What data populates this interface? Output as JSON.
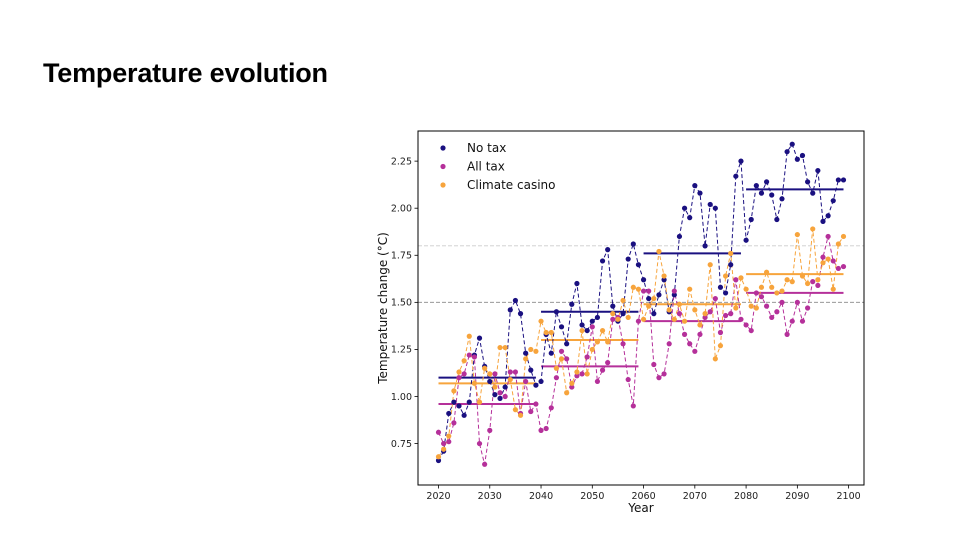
{
  "slide": {
    "title": "Temperature evolution"
  },
  "chart_data": {
    "type": "line",
    "title": "",
    "xlabel": "Year",
    "ylabel": "Temperature change (°C)",
    "xlim": [
      2016,
      2103
    ],
    "ylim": [
      0.53,
      2.41
    ],
    "xticks": [
      2020,
      2030,
      2040,
      2050,
      2060,
      2070,
      2080,
      2090,
      2100
    ],
    "yticks": [
      "0.75",
      "1.00",
      "1.25",
      "1.50",
      "1.75",
      "2.00",
      "2.25"
    ],
    "grid": false,
    "legend_position": "top-left",
    "reference_lines": [
      {
        "y": 1.5,
        "style": "dashed",
        "color": "#888888"
      },
      {
        "y": 1.8,
        "style": "dashed",
        "color": "#cccccc"
      }
    ],
    "x": [
      2020,
      2021,
      2022,
      2023,
      2024,
      2025,
      2026,
      2027,
      2028,
      2029,
      2030,
      2031,
      2032,
      2033,
      2034,
      2035,
      2036,
      2037,
      2038,
      2039,
      2040,
      2041,
      2042,
      2043,
      2044,
      2045,
      2046,
      2047,
      2048,
      2049,
      2050,
      2051,
      2052,
      2053,
      2054,
      2055,
      2056,
      2057,
      2058,
      2059,
      2060,
      2061,
      2062,
      2063,
      2064,
      2065,
      2066,
      2067,
      2068,
      2069,
      2070,
      2071,
      2072,
      2073,
      2074,
      2075,
      2076,
      2077,
      2078,
      2079,
      2080,
      2081,
      2082,
      2083,
      2084,
      2085,
      2086,
      2087,
      2088,
      2089,
      2090,
      2091,
      2092,
      2093,
      2094,
      2095,
      2096,
      2097,
      2098,
      2099
    ],
    "series": [
      {
        "name": "No tax",
        "color": "#1a1080",
        "values": [
          0.66,
          0.71,
          0.91,
          0.97,
          0.95,
          0.9,
          0.97,
          1.22,
          1.31,
          1.16,
          1.08,
          1.01,
          0.99,
          1.05,
          1.46,
          1.51,
          1.44,
          1.23,
          1.14,
          1.06,
          1.08,
          1.33,
          1.23,
          1.45,
          1.37,
          1.28,
          1.49,
          1.6,
          1.38,
          1.35,
          1.4,
          1.42,
          1.72,
          1.78,
          1.48,
          1.4,
          1.44,
          1.73,
          1.81,
          1.7,
          1.62,
          1.52,
          1.44,
          1.54,
          1.62,
          1.45,
          1.54,
          1.85,
          2.0,
          1.95,
          2.12,
          2.08,
          1.8,
          2.02,
          2.0,
          1.58,
          1.55,
          1.7,
          2.17,
          2.25,
          1.83,
          1.94,
          2.12,
          2.08,
          2.14,
          2.07,
          1.94,
          2.05,
          2.3,
          2.34,
          2.26,
          2.28,
          2.14,
          2.08,
          2.2,
          1.93,
          1.96,
          2.04,
          2.15,
          2.15
        ],
        "period_means": [
          {
            "start": 2020,
            "end": 2039,
            "value": 1.1
          },
          {
            "start": 2040,
            "end": 2059,
            "value": 1.45
          },
          {
            "start": 2060,
            "end": 2079,
            "value": 1.76
          },
          {
            "start": 2080,
            "end": 2099,
            "value": 2.1
          }
        ]
      },
      {
        "name": "All tax",
        "color": "#b5309a",
        "values": [
          0.81,
          0.75,
          0.76,
          0.86,
          1.1,
          1.12,
          1.22,
          1.21,
          0.75,
          0.64,
          0.82,
          1.12,
          1.02,
          1.0,
          1.13,
          1.13,
          0.91,
          1.08,
          0.92,
          0.96,
          0.82,
          0.83,
          0.94,
          1.1,
          1.24,
          1.2,
          1.05,
          1.11,
          1.12,
          1.21,
          1.37,
          1.08,
          1.14,
          1.18,
          1.41,
          1.42,
          1.28,
          1.09,
          0.95,
          1.4,
          1.56,
          1.56,
          1.17,
          1.1,
          1.12,
          1.28,
          1.56,
          1.44,
          1.33,
          1.28,
          1.24,
          1.33,
          1.42,
          1.45,
          1.52,
          1.34,
          1.43,
          1.44,
          1.62,
          1.41,
          1.38,
          1.35,
          1.55,
          1.53,
          1.48,
          1.42,
          1.45,
          1.5,
          1.33,
          1.4,
          1.5,
          1.4,
          1.47,
          1.61,
          1.59,
          1.74,
          1.85,
          1.72,
          1.68,
          1.69
        ],
        "period_means": [
          {
            "start": 2020,
            "end": 2039,
            "value": 0.96
          },
          {
            "start": 2040,
            "end": 2059,
            "value": 1.16
          },
          {
            "start": 2060,
            "end": 2079,
            "value": 1.4
          },
          {
            "start": 2080,
            "end": 2099,
            "value": 1.55
          }
        ]
      },
      {
        "name": "Climate casino",
        "color": "#f7a43c",
        "values": [
          0.68,
          0.72,
          0.79,
          1.03,
          1.13,
          1.19,
          1.32,
          1.07,
          0.97,
          1.15,
          1.12,
          1.05,
          1.26,
          1.26,
          1.09,
          0.93,
          0.9,
          1.2,
          1.25,
          1.24,
          1.4,
          1.34,
          1.34,
          1.15,
          1.2,
          1.02,
          1.07,
          1.13,
          1.35,
          1.12,
          1.25,
          1.29,
          1.35,
          1.29,
          1.44,
          1.41,
          1.51,
          1.42,
          1.58,
          1.57,
          1.41,
          1.48,
          1.52,
          1.77,
          1.64,
          1.46,
          1.41,
          1.49,
          1.4,
          1.57,
          1.46,
          1.38,
          1.44,
          1.7,
          1.2,
          1.27,
          1.64,
          1.76,
          1.47,
          1.63,
          1.57,
          1.48,
          1.47,
          1.58,
          1.66,
          1.58,
          1.55,
          1.56,
          1.62,
          1.61,
          1.86,
          1.64,
          1.6,
          1.89,
          1.62,
          1.71,
          1.73,
          1.57,
          1.81,
          1.85
        ],
        "period_means": [
          {
            "start": 2020,
            "end": 2039,
            "value": 1.07
          },
          {
            "start": 2040,
            "end": 2059,
            "value": 1.3
          },
          {
            "start": 2060,
            "end": 2079,
            "value": 1.49
          },
          {
            "start": 2080,
            "end": 2099,
            "value": 1.65
          }
        ]
      }
    ]
  }
}
